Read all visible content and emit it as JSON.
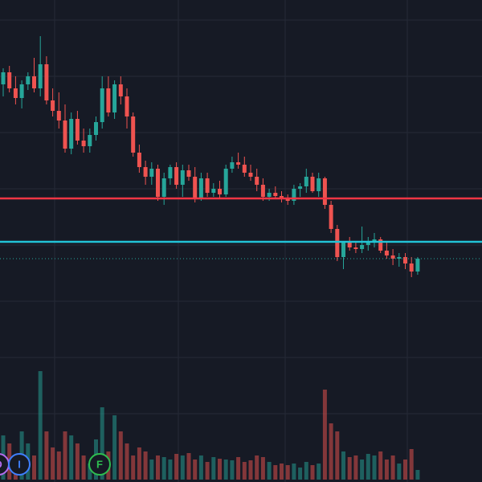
{
  "chart_data": {
    "type": "candlestick",
    "up_color": "#26a69a",
    "down_color": "#ef5350",
    "ylim": [
      200,
      600
    ],
    "volume_lim": [
      0,
      150
    ],
    "open": [
      495,
      510,
      490,
      478,
      495,
      505,
      490,
      520,
      475,
      462,
      450,
      415,
      452,
      425,
      418,
      432,
      448,
      490,
      460,
      495,
      480,
      455,
      410,
      392,
      380,
      390,
      355,
      378,
      392,
      370,
      388,
      380,
      352,
      378,
      360,
      365,
      358,
      390,
      398,
      395,
      385,
      380,
      370,
      355,
      360,
      356,
      352,
      350,
      365,
      368,
      380,
      362,
      378,
      345,
      315,
      280,
      298,
      292,
      290,
      295,
      300,
      302,
      288,
      282,
      278,
      280,
      272,
      262
    ],
    "high": [
      515,
      518,
      505,
      500,
      510,
      528,
      555,
      530,
      490,
      485,
      470,
      460,
      462,
      440,
      440,
      455,
      505,
      505,
      500,
      505,
      490,
      460,
      420,
      400,
      398,
      395,
      385,
      395,
      398,
      395,
      395,
      392,
      385,
      385,
      372,
      375,
      395,
      405,
      410,
      405,
      395,
      390,
      378,
      365,
      368,
      362,
      358,
      370,
      372,
      390,
      385,
      385,
      380,
      350,
      320,
      300,
      305,
      300,
      318,
      305,
      310,
      305,
      298,
      290,
      285,
      285,
      280,
      280
    ],
    "low": [
      480,
      485,
      470,
      465,
      488,
      485,
      480,
      470,
      455,
      440,
      410,
      408,
      420,
      410,
      410,
      425,
      440,
      455,
      452,
      470,
      440,
      405,
      385,
      370,
      370,
      350,
      345,
      370,
      365,
      355,
      375,
      348,
      350,
      355,
      355,
      352,
      355,
      385,
      390,
      380,
      375,
      362,
      350,
      350,
      352,
      348,
      345,
      345,
      355,
      360,
      360,
      355,
      340,
      310,
      275,
      265,
      288,
      285,
      285,
      288,
      292,
      285,
      278,
      270,
      268,
      265,
      255,
      258
    ],
    "close": [
      510,
      490,
      478,
      495,
      505,
      490,
      520,
      475,
      462,
      450,
      415,
      452,
      425,
      418,
      432,
      448,
      490,
      460,
      495,
      480,
      455,
      410,
      392,
      380,
      390,
      355,
      378,
      392,
      370,
      388,
      380,
      352,
      378,
      360,
      365,
      358,
      390,
      398,
      395,
      385,
      380,
      370,
      355,
      360,
      356,
      352,
      350,
      365,
      368,
      380,
      362,
      378,
      345,
      315,
      280,
      298,
      292,
      290,
      295,
      300,
      302,
      288,
      282,
      278,
      280,
      272,
      262,
      278
    ],
    "volume": [
      55,
      45,
      30,
      60,
      45,
      30,
      135,
      60,
      40,
      35,
      60,
      55,
      45,
      30,
      20,
      50,
      90,
      35,
      80,
      60,
      45,
      30,
      40,
      35,
      25,
      30,
      28,
      25,
      32,
      30,
      33,
      25,
      30,
      22,
      28,
      26,
      25,
      24,
      28,
      22,
      24,
      30,
      28,
      22,
      18,
      20,
      18,
      20,
      15,
      22,
      18,
      20,
      112,
      70,
      60,
      35,
      28,
      30,
      25,
      32,
      30,
      35,
      25,
      30,
      20,
      25,
      38,
      12
    ],
    "levels": [
      {
        "value": 353,
        "color": "#f23645"
      },
      {
        "value": 299,
        "color": "#22c3d6"
      }
    ],
    "events": [
      {
        "label": "D",
        "color": "#b56cf0"
      },
      {
        "label": "I",
        "color": "#3f7fff"
      },
      {
        "label": "F",
        "color": "#2ebd4f"
      }
    ]
  }
}
